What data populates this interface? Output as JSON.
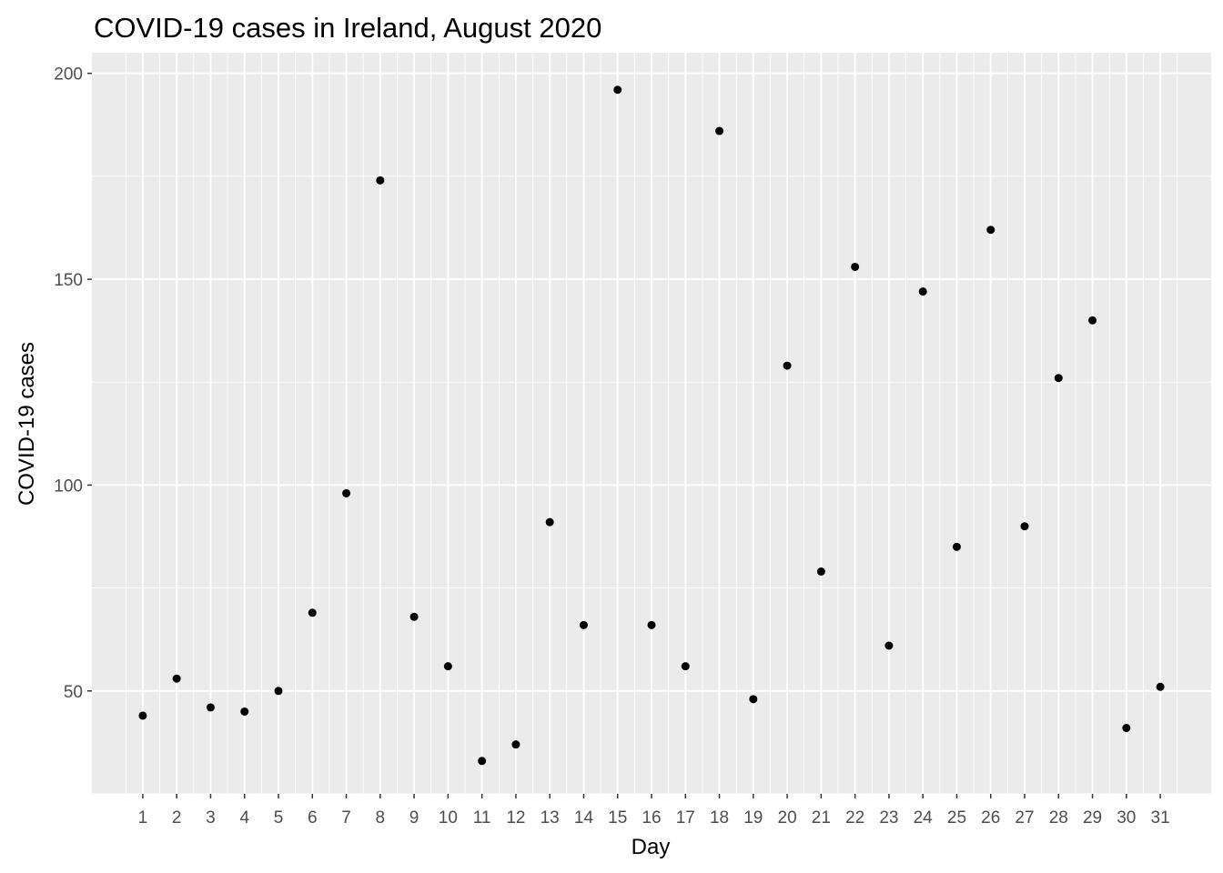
{
  "chart_data": {
    "type": "scatter",
    "title": "COVID-19 cases in Ireland, August 2020",
    "xlabel": "Day",
    "ylabel": "COVID-19 cases",
    "x": [
      1,
      2,
      3,
      4,
      5,
      6,
      7,
      8,
      9,
      10,
      11,
      12,
      13,
      14,
      15,
      16,
      17,
      18,
      19,
      20,
      21,
      22,
      23,
      24,
      25,
      26,
      27,
      28,
      29,
      30,
      31
    ],
    "y": [
      44,
      53,
      46,
      45,
      50,
      69,
      98,
      174,
      68,
      56,
      33,
      37,
      91,
      66,
      196,
      66,
      56,
      186,
      48,
      129,
      79,
      153,
      61,
      147,
      85,
      162,
      90,
      126,
      140,
      41,
      51
    ],
    "x_ticks": [
      "1",
      "2",
      "3",
      "4",
      "5",
      "6",
      "7",
      "8",
      "9",
      "10",
      "11",
      "12",
      "13",
      "14",
      "15",
      "16",
      "17",
      "18",
      "19",
      "20",
      "21",
      "22",
      "23",
      "24",
      "25",
      "26",
      "27",
      "28",
      "29",
      "30",
      "31"
    ],
    "y_ticks": [
      "50",
      "100",
      "150",
      "200"
    ],
    "xlim": [
      -0.5,
      32.5
    ],
    "ylim": [
      25,
      205
    ],
    "grid": true,
    "colors": {
      "panel": "#ebebeb",
      "grid": "#ffffff",
      "point": "#000000",
      "tick_text": "#4d4d4d"
    }
  }
}
